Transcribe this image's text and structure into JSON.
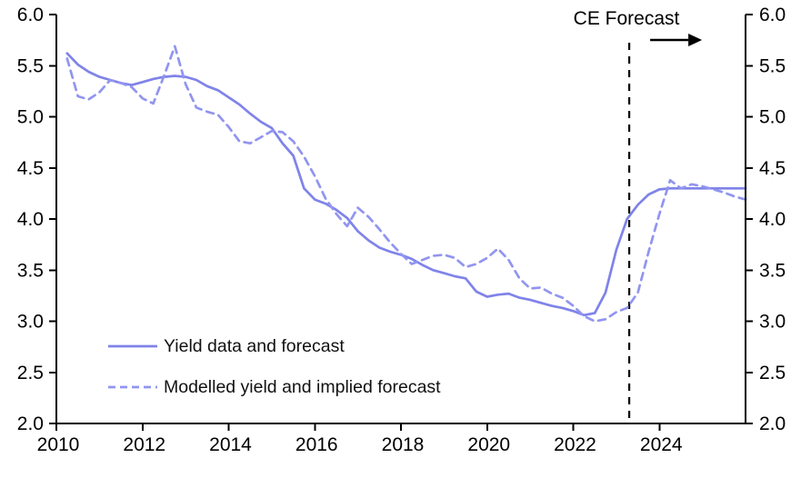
{
  "chart_data": {
    "type": "line",
    "title": "",
    "grid": false,
    "legend_position": "inside-bottom-left",
    "x_axis": {
      "min": 2010,
      "max": 2026,
      "tick_labels": [
        "2010",
        "2012",
        "2014",
        "2016",
        "2018",
        "2020",
        "2022",
        "2024"
      ],
      "tick_values": [
        2010,
        2012,
        2014,
        2016,
        2018,
        2020,
        2022,
        2024
      ]
    },
    "y_axis": {
      "min": 2.0,
      "max": 6.0,
      "sides": "both",
      "tick_labels": [
        "6.0",
        "5.5",
        "5.0",
        "4.5",
        "4.0",
        "3.5",
        "3.0",
        "2.5",
        "2.0"
      ],
      "tick_values": [
        6.0,
        5.5,
        5.0,
        4.5,
        4.0,
        3.5,
        3.0,
        2.5,
        2.0
      ]
    },
    "x": [
      2010.25,
      2010.5,
      2010.75,
      2011,
      2011.25,
      2011.5,
      2011.75,
      2012,
      2012.25,
      2012.5,
      2012.75,
      2013,
      2013.25,
      2013.5,
      2013.75,
      2014,
      2014.25,
      2014.5,
      2014.75,
      2015,
      2015.25,
      2015.5,
      2015.75,
      2016,
      2016.25,
      2016.5,
      2016.75,
      2017,
      2017.25,
      2017.5,
      2017.75,
      2018,
      2018.25,
      2018.5,
      2018.75,
      2019,
      2019.25,
      2019.5,
      2019.75,
      2020,
      2020.25,
      2020.5,
      2020.75,
      2021,
      2021.25,
      2021.5,
      2021.75,
      2022,
      2022.25,
      2022.5,
      2022.75,
      2023,
      2023.25,
      2023.5,
      2023.75,
      2024,
      2024.25,
      2024.5,
      2024.75,
      2025,
      2025.25,
      2025.5,
      2025.75,
      2026
    ],
    "series": [
      {
        "name": "Yield data and forecast",
        "style": "solid",
        "color": "#7f83e8",
        "values": [
          5.62,
          5.51,
          5.44,
          5.39,
          5.36,
          5.33,
          5.31,
          5.34,
          5.37,
          5.39,
          5.4,
          5.39,
          5.36,
          5.3,
          5.26,
          5.19,
          5.12,
          5.03,
          4.95,
          4.89,
          4.74,
          4.62,
          4.3,
          4.19,
          4.15,
          4.09,
          4.01,
          3.88,
          3.79,
          3.72,
          3.68,
          3.65,
          3.61,
          3.55,
          3.5,
          3.47,
          3.44,
          3.42,
          3.29,
          3.24,
          3.26,
          3.27,
          3.23,
          3.21,
          3.18,
          3.15,
          3.13,
          3.1,
          3.06,
          3.08,
          3.28,
          3.7,
          4.0,
          4.14,
          4.24,
          4.29,
          4.3,
          4.3,
          4.3,
          4.3,
          4.3,
          4.3,
          4.3,
          4.3
        ]
      },
      {
        "name": "Modelled yield and implied forecast",
        "style": "dashed",
        "color": "#9195ef",
        "values": [
          5.57,
          5.2,
          5.17,
          5.24,
          5.36,
          5.33,
          5.29,
          5.18,
          5.13,
          5.4,
          5.69,
          5.32,
          5.09,
          5.05,
          5.02,
          4.9,
          4.76,
          4.74,
          4.8,
          4.86,
          4.85,
          4.76,
          4.61,
          4.42,
          4.2,
          4.05,
          3.93,
          4.11,
          4.02,
          3.9,
          3.77,
          3.66,
          3.56,
          3.6,
          3.64,
          3.65,
          3.62,
          3.53,
          3.56,
          3.62,
          3.71,
          3.6,
          3.42,
          3.32,
          3.33,
          3.27,
          3.23,
          3.15,
          3.05,
          3.0,
          3.02,
          3.09,
          3.13,
          3.28,
          3.68,
          4.05,
          4.38,
          4.3,
          4.34,
          4.32,
          4.29,
          4.26,
          4.22,
          4.19
        ]
      }
    ],
    "annotation": {
      "label": "CE Forecast",
      "x": 2023.3,
      "arrow_direction": "right",
      "line_style": "black-dashed-vertical"
    },
    "axis_color": "#000000"
  }
}
